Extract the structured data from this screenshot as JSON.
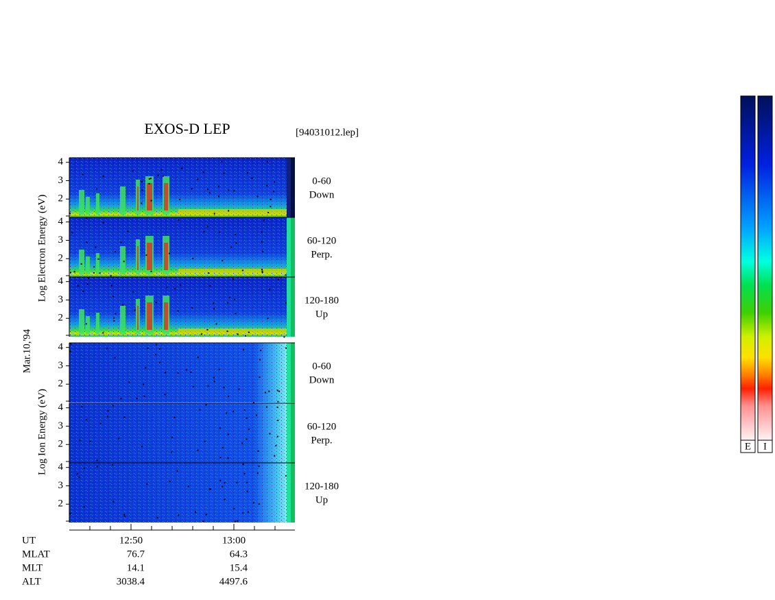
{
  "header": {
    "title": "EXOS-D LEP",
    "file": "[94031012.lep]"
  },
  "date": "Mar.10,'94",
  "electron": {
    "axis_label": "Log Electron Energy (eV)",
    "panels": [
      {
        "angle": "0-60",
        "direction": "Down"
      },
      {
        "angle": "60-120",
        "direction": "Perp."
      },
      {
        "angle": "120-180",
        "direction": "Up"
      }
    ]
  },
  "ion": {
    "axis_label": "Log Ion Energy (eV)",
    "panels": [
      {
        "angle": "0-60",
        "direction": "Down"
      },
      {
        "angle": "60-120",
        "direction": "Perp."
      },
      {
        "angle": "120-180",
        "direction": "Up"
      }
    ]
  },
  "ylim": [
    1,
    4.25
  ],
  "yticks": [
    4,
    3,
    2
  ],
  "ephemeris": {
    "rows": [
      {
        "label": "UT",
        "values": [
          "12:50",
          "13:00"
        ]
      },
      {
        "label": "MLAT",
        "values": [
          76.7,
          64.3
        ]
      },
      {
        "label": "MLT",
        "values": [
          14.1,
          15.4
        ]
      },
      {
        "label": "ALT",
        "values": [
          3038.4,
          4497.6
        ]
      }
    ]
  },
  "colorbars": [
    "E",
    "I"
  ]
}
